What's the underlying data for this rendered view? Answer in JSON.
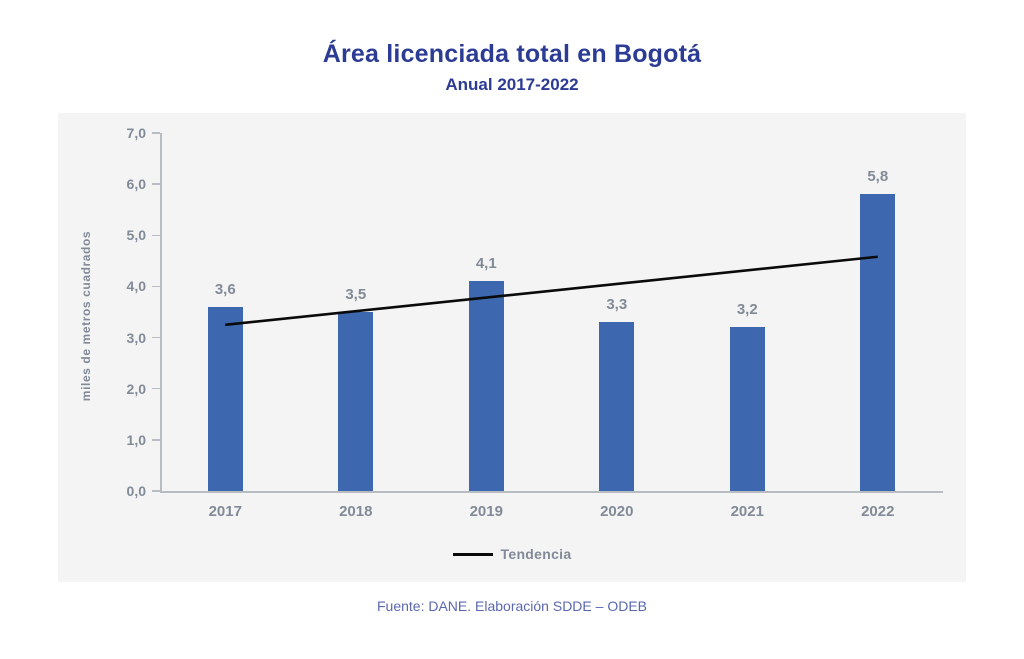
{
  "title": "Área licenciada total en Bogotá",
  "subtitle": "Anual 2017-2022",
  "footer": "Fuente: DANE. Elaboración SDDE – ODEB",
  "colors": {
    "title": "#2c3b94",
    "bar": "#3d67ae",
    "trend": "#0a0a0a",
    "gray": "#828a97",
    "axis": "#b7bbc2",
    "panel": "#f4f4f4",
    "footer": "#5a68b0"
  },
  "chart_data": {
    "type": "bar",
    "title": "Área licenciada total en Bogotá",
    "subtitle": "Anual 2017-2022",
    "xlabel": "",
    "ylabel": "miles de metros cuadrados",
    "categories": [
      "2017",
      "2018",
      "2019",
      "2020",
      "2021",
      "2022"
    ],
    "values": [
      3.6,
      3.5,
      4.1,
      3.3,
      3.2,
      5.8
    ],
    "value_labels": [
      "3,6",
      "3,5",
      "4,1",
      "3,3",
      "3,2",
      "5,8"
    ],
    "ylim": [
      0,
      7
    ],
    "ytick_step": 1,
    "ytick_labels": [
      "0,0",
      "1,0",
      "2,0",
      "3,0",
      "4,0",
      "5,0",
      "6,0",
      "7,0"
    ],
    "grid": false,
    "decimal_separator": ",",
    "series": [
      {
        "name": "Área licenciada",
        "type": "bar",
        "color": "#3d67ae",
        "values": [
          3.6,
          3.5,
          4.1,
          3.3,
          3.2,
          5.8
        ]
      },
      {
        "name": "Tendencia",
        "type": "line",
        "color": "#0a0a0a",
        "values": [
          3.25,
          3.52,
          3.78,
          4.05,
          4.31,
          4.58
        ]
      }
    ],
    "legend": {
      "position": "bottom",
      "entries": [
        {
          "label": "Tendencia",
          "type": "line",
          "color": "#0a0a0a"
        }
      ]
    }
  }
}
